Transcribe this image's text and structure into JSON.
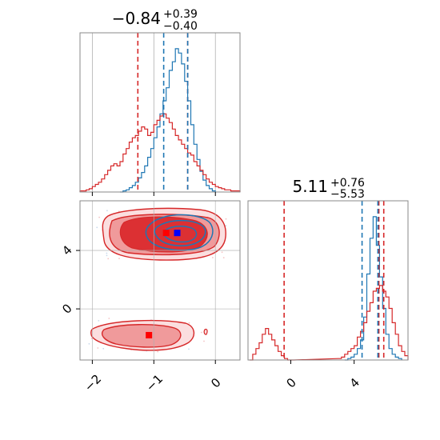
{
  "figure": {
    "type": "corner plot",
    "colors": {
      "blue": "#1f77b4",
      "red": "#d62728",
      "red_fill": "#f09a9b",
      "red_dark": "#c72226",
      "grid": "#b0b0b0",
      "axis": "#888888"
    }
  },
  "chart_data": [
    {
      "panel": "top-left",
      "type": "histogram",
      "title": {
        "main": "−0.84",
        "upper": "+0.39",
        "lower": "−0.40"
      },
      "xlim": [
        -2.2,
        0.4
      ],
      "x_ticks": [
        -2,
        -1,
        0
      ],
      "tick_labels_shown": false,
      "grid": true,
      "series": [
        {
          "color": "blue",
          "bins": [
            -1.55,
            -1.5,
            -1.45,
            -1.4,
            -1.35,
            -1.3,
            -1.25,
            -1.2,
            -1.15,
            -1.1,
            -1.05,
            -1.0,
            -0.95,
            -0.9,
            -0.85,
            -0.8,
            -0.75,
            -0.7,
            -0.65,
            -0.6,
            -0.55,
            -0.5,
            -0.45,
            -0.4,
            -0.35,
            -0.3,
            -0.25,
            -0.2,
            -0.15,
            -0.1,
            -0.05
          ],
          "counts": [
            0,
            1,
            2,
            4,
            6,
            9,
            13,
            18,
            24,
            32,
            40,
            50,
            60,
            72,
            84,
            96,
            112,
            120,
            132,
            128,
            118,
            102,
            84,
            62,
            44,
            30,
            19,
            11,
            6,
            3,
            1
          ]
        },
        {
          "color": "red",
          "bins": [
            -2.2,
            -2.15,
            -2.1,
            -2.05,
            -2.0,
            -1.95,
            -1.9,
            -1.85,
            -1.8,
            -1.75,
            -1.7,
            -1.65,
            -1.6,
            -1.55,
            -1.5,
            -1.45,
            -1.4,
            -1.35,
            -1.3,
            -1.25,
            -1.2,
            -1.15,
            -1.1,
            -1.05,
            -1.0,
            -0.95,
            -0.9,
            -0.85,
            -0.8,
            -0.75,
            -0.7,
            -0.65,
            -0.6,
            -0.55,
            -0.5,
            -0.45,
            -0.4,
            -0.35,
            -0.3,
            -0.25,
            -0.2,
            -0.15,
            -0.1,
            -0.05,
            0.0,
            0.05,
            0.1,
            0.15,
            0.2,
            0.25,
            0.3,
            0.35
          ],
          "counts": [
            1,
            1,
            2,
            3,
            5,
            7,
            9,
            12,
            16,
            20,
            24,
            26,
            24,
            28,
            35,
            40,
            46,
            50,
            52,
            56,
            60,
            58,
            52,
            55,
            62,
            66,
            70,
            72,
            68,
            64,
            58,
            52,
            48,
            44,
            40,
            36,
            34,
            28,
            24,
            20,
            16,
            12,
            9,
            7,
            5,
            4,
            3,
            2,
            2,
            1,
            1,
            1
          ]
        }
      ],
      "quantile_lines": [
        {
          "color": "red",
          "x": [
            -1.26,
            -0.45
          ]
        },
        {
          "color": "blue",
          "x": [
            -0.84,
            -0.45
          ]
        }
      ]
    },
    {
      "panel": "bottom-left",
      "type": "2d-density",
      "xlim": [
        -2.2,
        0.4
      ],
      "ylim": [
        -3.5,
        7.4
      ],
      "x_ticks": [
        -2,
        -1,
        0
      ],
      "x_tick_labels": [
        "−2",
        "−1",
        "0"
      ],
      "y_ticks": [
        0,
        4
      ],
      "y_tick_labels": [
        "0",
        "4"
      ],
      "grid": true,
      "markers": [
        {
          "color": "red",
          "x": -1.08,
          "y": -1.8
        },
        {
          "color": "red",
          "x": -0.8,
          "y": 5.2
        },
        {
          "color": "blue",
          "x": -0.62,
          "y": 5.2
        }
      ]
    },
    {
      "panel": "bottom-right",
      "type": "histogram",
      "title": {
        "main": "5.11",
        "upper": "+0.76",
        "lower": "−5.53"
      },
      "xlim": [
        -2.7,
        7.4
      ],
      "x_ticks": [
        0,
        4
      ],
      "x_tick_labels": [
        "0",
        "4"
      ],
      "grid": false,
      "series": [
        {
          "color": "blue",
          "bins": [
            3.4,
            3.6,
            3.8,
            4.0,
            4.2,
            4.4,
            4.6,
            4.8,
            5.0,
            5.2,
            5.4,
            5.6,
            5.8,
            6.0,
            6.2,
            6.4,
            6.6,
            6.8
          ],
          "counts": [
            0,
            1,
            2,
            4,
            8,
            14,
            30,
            60,
            85,
            100,
            80,
            58,
            36,
            18,
            8,
            4,
            2,
            1
          ]
        },
        {
          "color": "red",
          "bins": [
            -2.6,
            -2.4,
            -2.2,
            -2.0,
            -1.8,
            -1.6,
            -1.4,
            -1.2,
            -1.0,
            -0.8,
            -0.6,
            -0.4,
            -0.2,
            0.0,
            3.0,
            3.2,
            3.4,
            3.6,
            3.8,
            4.0,
            4.2,
            4.4,
            4.6,
            4.8,
            5.0,
            5.2,
            5.4,
            5.6,
            5.8,
            6.0,
            6.2,
            6.4,
            6.6,
            6.8,
            7.0,
            7.2
          ],
          "counts": [
            0,
            4,
            8,
            12,
            18,
            22,
            18,
            14,
            10,
            6,
            3,
            1,
            0,
            0,
            1,
            2,
            4,
            6,
            8,
            10,
            16,
            20,
            26,
            34,
            40,
            48,
            50,
            52,
            48,
            44,
            36,
            26,
            18,
            10,
            6,
            3
          ]
        }
      ],
      "quantile_lines": [
        {
          "color": "red",
          "x": [
            -0.42,
            5.56,
            5.87
          ]
        },
        {
          "color": "blue",
          "x": [
            4.5,
            5.5
          ]
        }
      ]
    }
  ]
}
